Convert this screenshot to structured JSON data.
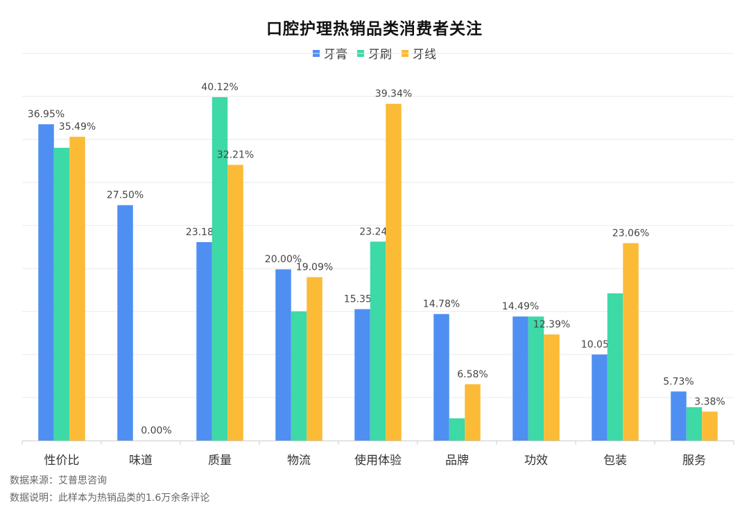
{
  "chart_data": {
    "type": "bar",
    "title": "口腔护理热销品类消费者关注",
    "categories": [
      "性价比",
      "味道",
      "质量",
      "物流",
      "使用体验",
      "品牌",
      "功效",
      "包装",
      "服务"
    ],
    "series": [
      {
        "name": "牙膏",
        "color": "#4F8FF2",
        "values": [
          36.95,
          27.5,
          23.18,
          20.0,
          15.35,
          14.78,
          14.49,
          10.05,
          5.73
        ],
        "labels": [
          "36.95%",
          "27.50%",
          "23.18%",
          "20.00%",
          "15.35%",
          "14.78%",
          "14.49%",
          "10.05%",
          "5.73%"
        ]
      },
      {
        "name": "牙刷",
        "color": "#3DD9A6",
        "values": [
          34.2,
          0,
          40.12,
          15.1,
          23.24,
          2.6,
          14.49,
          17.2,
          3.9
        ],
        "labels": [
          "",
          "",
          "40.12%",
          "",
          "23.24%",
          "",
          "",
          "",
          ""
        ]
      },
      {
        "name": "牙线",
        "color": "#FBBB37",
        "values": [
          35.49,
          0.0,
          32.21,
          19.09,
          39.34,
          6.58,
          12.39,
          23.06,
          3.38
        ],
        "labels": [
          "35.49%",
          "0.00%",
          "32.21%",
          "19.09%",
          "39.34%",
          "6.58%",
          "12.39%",
          "23.06%",
          "3.38%"
        ]
      }
    ],
    "ylim": [
      0,
      45
    ],
    "grid": true,
    "legend_position": "top-center"
  },
  "footnotes": {
    "source": "数据来源：艾普思咨询",
    "note": "数据说明：此样本为热销品类的1.6万余条评论"
  }
}
